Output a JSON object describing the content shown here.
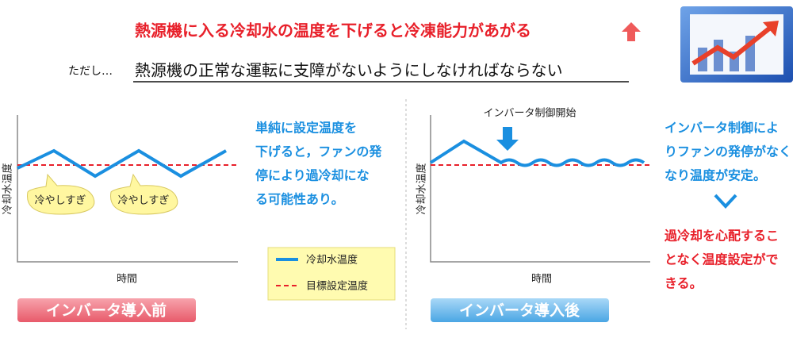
{
  "headline": "熱源機に入る冷却水の温度を下げると冷凍能力があがる",
  "note": {
    "prefix": "ただし…",
    "text": "熱源機の正常な運転に支障がないようにしなければならない"
  },
  "before": {
    "y_label": "冷却水温度",
    "x_label": "時間",
    "bubbles": [
      "冷やしすぎ",
      "冷やしすぎ"
    ],
    "description": [
      "単純に設定温度を",
      "下げると，ファンの発",
      "停により過冷却にな",
      "る可能性あり。"
    ],
    "banner": "インバータ導入前"
  },
  "legend": [
    "冷却水温度",
    "目標設定温度"
  ],
  "after": {
    "y_label": "冷却水温度",
    "x_label": "時間",
    "annotation": "インバータ制御開始",
    "description": [
      "インバータ制御によ",
      "りファンの発停がなく",
      "なり温度が安定。"
    ],
    "conclusion": [
      "過冷却を心配するこ",
      "となく温度設定がで",
      "きる。"
    ],
    "banner": "インバータ導入後"
  }
}
